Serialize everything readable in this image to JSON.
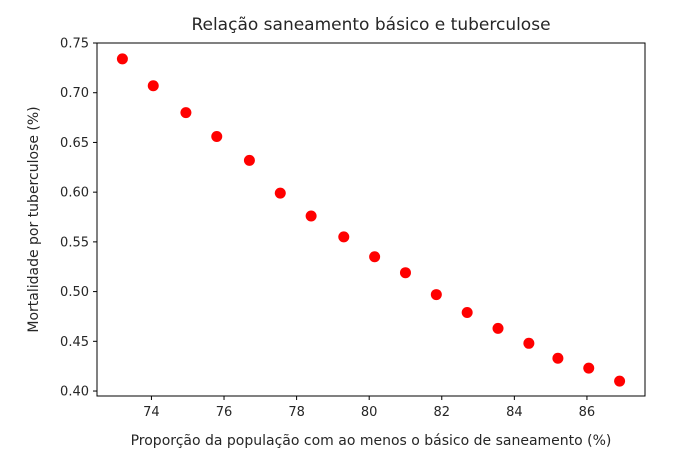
{
  "chart_data": {
    "type": "scatter",
    "title": "Relação saneamento básico e tuberculose",
    "xlabel": "Proporção da população com ao menos o básico de saneamento (%)",
    "ylabel": "Mortalidade por tuberculose (%)",
    "xlim": [
      72.5,
      87.6
    ],
    "ylim": [
      0.395,
      0.75
    ],
    "xticks": [
      74,
      76,
      78,
      80,
      82,
      84,
      86
    ],
    "yticks": [
      0.4,
      0.45,
      0.5,
      0.55,
      0.6,
      0.65,
      0.7,
      0.75
    ],
    "xtick_labels": [
      "74",
      "76",
      "78",
      "80",
      "82",
      "84",
      "86"
    ],
    "ytick_labels": [
      "0.40",
      "0.45",
      "0.50",
      "0.55",
      "0.60",
      "0.65",
      "0.70",
      "0.75"
    ],
    "grid": false,
    "marker_color": "#ff0000",
    "points": [
      {
        "x": 73.2,
        "y": 0.734
      },
      {
        "x": 74.05,
        "y": 0.707
      },
      {
        "x": 74.95,
        "y": 0.68
      },
      {
        "x": 75.8,
        "y": 0.656
      },
      {
        "x": 76.7,
        "y": 0.632
      },
      {
        "x": 77.55,
        "y": 0.599
      },
      {
        "x": 78.4,
        "y": 0.576
      },
      {
        "x": 79.3,
        "y": 0.555
      },
      {
        "x": 80.15,
        "y": 0.535
      },
      {
        "x": 81.0,
        "y": 0.519
      },
      {
        "x": 81.85,
        "y": 0.497
      },
      {
        "x": 82.7,
        "y": 0.479
      },
      {
        "x": 83.55,
        "y": 0.463
      },
      {
        "x": 84.4,
        "y": 0.448
      },
      {
        "x": 85.2,
        "y": 0.433
      },
      {
        "x": 86.05,
        "y": 0.423
      },
      {
        "x": 86.9,
        "y": 0.41
      }
    ]
  }
}
